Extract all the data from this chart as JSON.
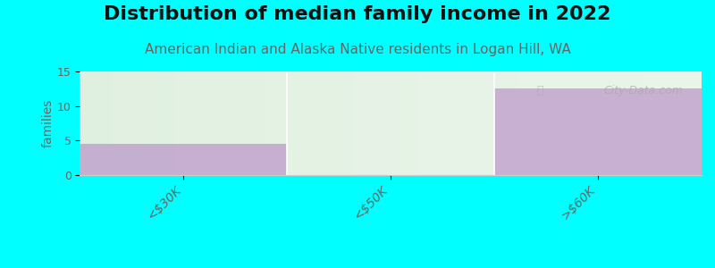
{
  "title": "Distribution of median family income in 2022",
  "subtitle": "American Indian and Alaska Native residents in Logan Hill, WA",
  "subtitle_color": "#666666",
  "categories": [
    "<$30K",
    "<$50K",
    ">$60K"
  ],
  "values": [
    4.5,
    0,
    12.5
  ],
  "bar_color": "#bf9fcc",
  "bar_alpha": 0.8,
  "ylim": [
    0,
    15
  ],
  "yticks": [
    0,
    5,
    10,
    15
  ],
  "ylabel": "families",
  "background_color": "#00ffff",
  "plot_bg_top": "#f5fff5",
  "plot_bg_bottom": "#ffffff",
  "watermark": "City-Data.com",
  "title_fontsize": 16,
  "subtitle_fontsize": 11,
  "title_color": "#111111",
  "tick_color": "#666666"
}
